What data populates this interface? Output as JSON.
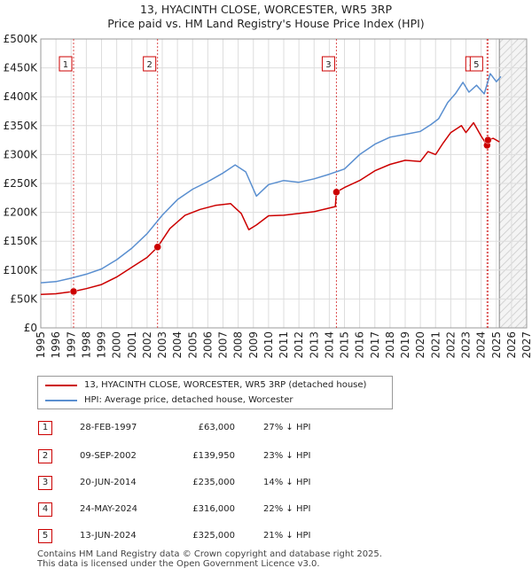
{
  "chart_data": {
    "type": "line",
    "title": "13, HYACINTH CLOSE, WORCESTER, WR5 3RP",
    "subtitle": "Price paid vs. HM Land Registry's House Price Index (HPI)",
    "xlim": [
      1995,
      2027
    ],
    "ylim": [
      0,
      500000
    ],
    "x_ticks": [
      "1995",
      "1996",
      "1997",
      "1998",
      "1999",
      "2000",
      "2001",
      "2002",
      "2003",
      "2004",
      "2005",
      "2006",
      "2007",
      "2008",
      "2009",
      "2010",
      "2011",
      "2012",
      "2013",
      "2014",
      "2015",
      "2016",
      "2017",
      "2018",
      "2019",
      "2020",
      "2021",
      "2022",
      "2023",
      "2024",
      "2025",
      "2026",
      "2027"
    ],
    "y_ticks": [
      {
        "value": 0,
        "label": "£0"
      },
      {
        "value": 50000,
        "label": "£50K"
      },
      {
        "value": 100000,
        "label": "£100K"
      },
      {
        "value": 150000,
        "label": "£150K"
      },
      {
        "value": 200000,
        "label": "£200K"
      },
      {
        "value": 250000,
        "label": "£250K"
      },
      {
        "value": 300000,
        "label": "£300K"
      },
      {
        "value": 350000,
        "label": "£350K"
      },
      {
        "value": 400000,
        "label": "£400K"
      },
      {
        "value": 450000,
        "label": "£450K"
      },
      {
        "value": 500000,
        "label": "£500K"
      }
    ],
    "forecast_start": 2025.2,
    "series": [
      {
        "name": "13, HYACINTH CLOSE, WORCESTER, WR5 3RP (detached house)",
        "color": "#cc0000",
        "x": [
          1995.0,
          1996.0,
          1997.16,
          1998.0,
          1999.0,
          2000.0,
          2001.0,
          2002.0,
          2002.69,
          2003.5,
          2004.5,
          2005.5,
          2006.5,
          2007.5,
          2008.2,
          2008.7,
          2009.2,
          2010.0,
          2011.0,
          2012.0,
          2013.0,
          2014.4,
          2014.47,
          2015.0,
          2016.0,
          2017.0,
          2018.0,
          2019.0,
          2020.0,
          2020.5,
          2021.0,
          2021.5,
          2022.0,
          2022.7,
          2023.0,
          2023.5,
          2024.0,
          2024.39,
          2024.45,
          2024.8,
          2025.2
        ],
        "y": [
          58000,
          59000,
          63000,
          68000,
          75000,
          88000,
          105000,
          122000,
          139950,
          172000,
          195000,
          205000,
          212000,
          215000,
          198000,
          170000,
          178000,
          194000,
          195000,
          198000,
          201000,
          210000,
          235000,
          243000,
          255000,
          272000,
          283000,
          290000,
          288000,
          305000,
          300000,
          320000,
          338000,
          350000,
          338000,
          355000,
          332000,
          316000,
          325000,
          328000,
          322000
        ]
      },
      {
        "name": "HPI: Average price, detached house, Worcester",
        "color": "#5a8fd0",
        "x": [
          1995.0,
          1996.0,
          1997.0,
          1998.0,
          1999.0,
          2000.0,
          2001.0,
          2002.0,
          2003.0,
          2004.0,
          2005.0,
          2006.0,
          2007.0,
          2007.8,
          2008.5,
          2009.2,
          2010.0,
          2011.0,
          2012.0,
          2013.0,
          2014.0,
          2015.0,
          2016.0,
          2017.0,
          2018.0,
          2019.0,
          2020.0,
          2020.7,
          2021.2,
          2021.8,
          2022.3,
          2022.8,
          2023.2,
          2023.7,
          2024.2,
          2024.6,
          2025.0,
          2025.3
        ],
        "y": [
          78000,
          80000,
          86000,
          93000,
          102000,
          118000,
          138000,
          163000,
          195000,
          222000,
          240000,
          253000,
          268000,
          282000,
          270000,
          228000,
          248000,
          255000,
          252000,
          258000,
          266000,
          275000,
          300000,
          318000,
          330000,
          335000,
          340000,
          352000,
          362000,
          390000,
          405000,
          425000,
          408000,
          420000,
          405000,
          440000,
          426000,
          435000
        ]
      }
    ],
    "sales": [
      {
        "num": "1",
        "year": 1997.16,
        "price": 63000,
        "date": "28-FEB-1997",
        "price_label": "£63,000",
        "hpi": "27% ↓ HPI"
      },
      {
        "num": "2",
        "year": 2002.69,
        "price": 139950,
        "date": "09-SEP-2002",
        "price_label": "£139,950",
        "hpi": "23% ↓ HPI"
      },
      {
        "num": "3",
        "year": 2014.47,
        "price": 235000,
        "date": "20-JUN-2014",
        "price_label": "£235,000",
        "hpi": "14% ↓ HPI"
      },
      {
        "num": "4",
        "year": 2024.39,
        "price": 316000,
        "date": "24-MAY-2024",
        "price_label": "£316,000",
        "hpi": "22% ↓ HPI"
      },
      {
        "num": "5",
        "year": 2024.45,
        "price": 325000,
        "date": "13-JUN-2024",
        "price_label": "£325,000",
        "hpi": "21% ↓ HPI"
      }
    ]
  },
  "legend": {
    "property_label": "13, HYACINTH CLOSE, WORCESTER, WR5 3RP (detached house)",
    "hpi_label": "HPI: Average price, detached house, Worcester",
    "property_color": "#cc0000",
    "hpi_color": "#5a8fd0"
  },
  "footer": {
    "line1": "Contains HM Land Registry data © Crown copyright and database right 2025.",
    "line2": "This data is licensed under the Open Government Licence v3.0."
  }
}
